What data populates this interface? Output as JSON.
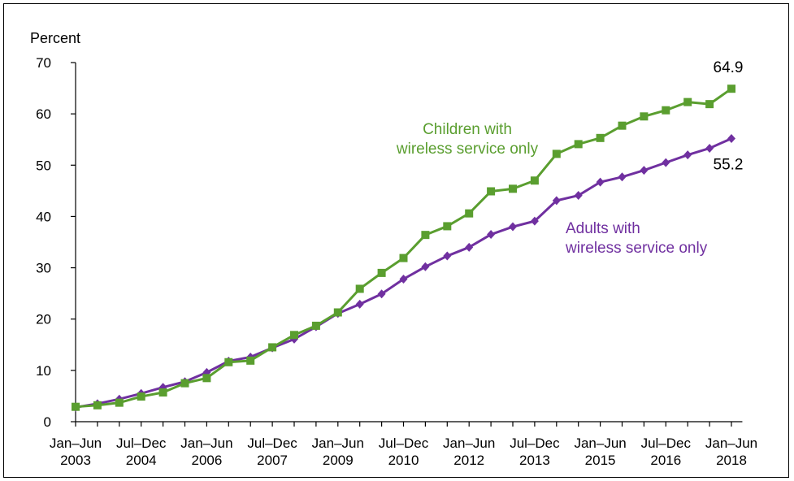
{
  "chart_data": {
    "type": "line",
    "ylabel": "Percent",
    "ylim": [
      0,
      70
    ],
    "yticks": [
      0,
      10,
      20,
      30,
      40,
      50,
      60,
      70
    ],
    "x_tick_labels": [
      {
        "index": 0,
        "line1": "Jan–Jun",
        "line2": "2003"
      },
      {
        "index": 3,
        "line1": "Jul–Dec",
        "line2": "2004"
      },
      {
        "index": 6,
        "line1": "Jan–Jun",
        "line2": "2006"
      },
      {
        "index": 9,
        "line1": "Jul–Dec",
        "line2": "2007"
      },
      {
        "index": 12,
        "line1": "Jan–Jun",
        "line2": "2009"
      },
      {
        "index": 15,
        "line1": "Jul–Dec",
        "line2": "2010"
      },
      {
        "index": 18,
        "line1": "Jan–Jun",
        "line2": "2012"
      },
      {
        "index": 21,
        "line1": "Jul–Dec",
        "line2": "2013"
      },
      {
        "index": 24,
        "line1": "Jan–Jun",
        "line2": "2015"
      },
      {
        "index": 27,
        "line1": "Jul–Dec",
        "line2": "2016"
      },
      {
        "index": 30,
        "line1": "Jan–Jun",
        "line2": "2018"
      }
    ],
    "grid": false,
    "series": [
      {
        "name": "Children with wireless service only",
        "label_lines": [
          "Children with",
          "wireless service only"
        ],
        "color": "#5a9e2f",
        "marker": "square",
        "values": [
          2.9,
          3.2,
          3.7,
          4.9,
          5.7,
          7.5,
          8.5,
          11.6,
          11.9,
          14.5,
          16.9,
          18.7,
          21.3,
          25.9,
          29.0,
          31.9,
          36.4,
          38.1,
          40.6,
          44.9,
          45.4,
          47.0,
          52.2,
          54.1,
          55.3,
          57.7,
          59.5,
          60.7,
          62.3,
          61.9,
          64.9
        ],
        "end_label": "64.9"
      },
      {
        "name": "Adults with wireless service only",
        "label_lines": [
          "Adults with",
          "wireless service only"
        ],
        "color": "#7030a0",
        "marker": "diamond",
        "values": [
          2.8,
          3.5,
          4.4,
          5.5,
          6.7,
          7.8,
          9.6,
          11.8,
          12.6,
          14.4,
          16.1,
          18.5,
          21.1,
          22.9,
          24.9,
          27.8,
          30.2,
          32.3,
          34.0,
          36.5,
          38.0,
          39.1,
          43.1,
          44.1,
          46.7,
          47.7,
          49.0,
          50.5,
          52.0,
          53.3,
          55.2
        ],
        "end_label": "55.2"
      }
    ]
  }
}
